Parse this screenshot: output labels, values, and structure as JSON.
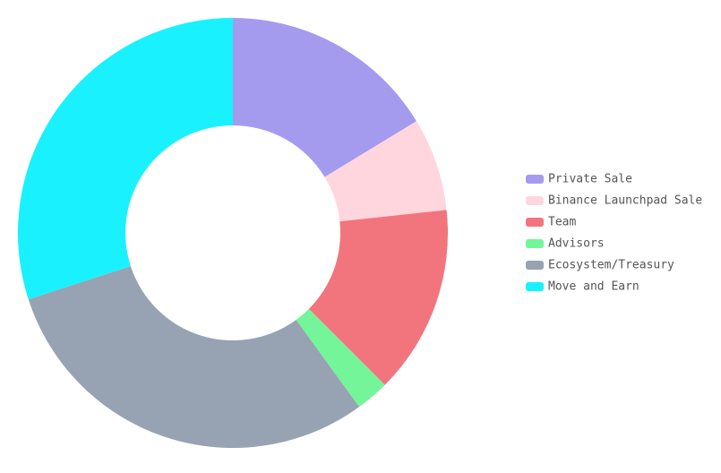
{
  "chart_data": {
    "type": "doughnut",
    "categories": [
      "Private Sale",
      "Binance Launchpad Sale",
      "Team",
      "Advisors",
      "Ecosystem/Treasury",
      "Move and Earn"
    ],
    "values": [
      16.3,
      7,
      14.2,
      2.5,
      30,
      30
    ],
    "colors": [
      "#a49bef",
      "#ffd6de",
      "#f2747c",
      "#74f59a",
      "#97a2b2",
      "#19f1ff"
    ],
    "legend": "right"
  }
}
